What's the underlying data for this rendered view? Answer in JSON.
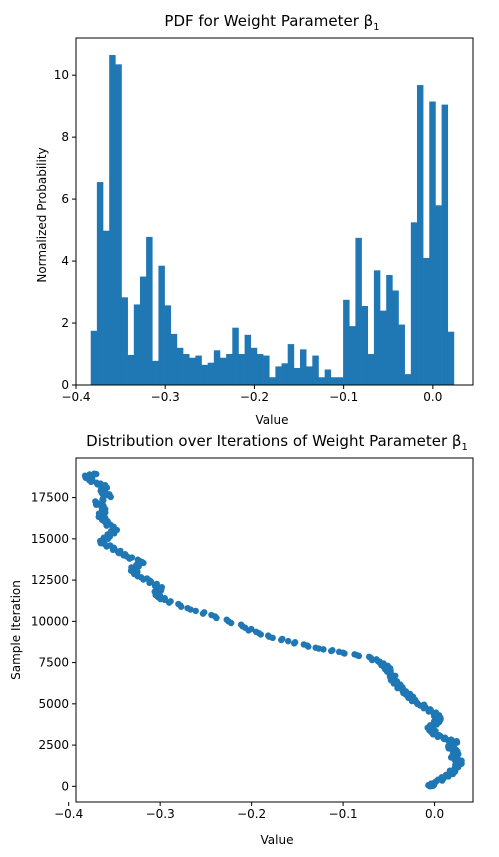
{
  "chart_data": [
    {
      "type": "bar",
      "title": "PDF for Weight Parameter β",
      "title_subscript": "1",
      "xlabel": "Value",
      "ylabel": "Normalized Probability",
      "xlim": [
        -0.4,
        0.045
      ],
      "ylim": [
        0,
        11.2
      ],
      "xticks": [
        -0.4,
        -0.3,
        -0.2,
        -0.1,
        0.0
      ],
      "xtick_labels": [
        "−0.4",
        "−0.3",
        "−0.2",
        "−0.1",
        "0.0"
      ],
      "yticks": [
        0,
        2,
        4,
        6,
        8,
        10
      ],
      "ytick_labels": [
        "0",
        "2",
        "4",
        "6",
        "8",
        "10"
      ],
      "bin_start": -0.3835,
      "bin_width": 0.0069,
      "values": [
        1.75,
        6.55,
        4.98,
        10.65,
        10.35,
        2.83,
        0.97,
        2.6,
        3.5,
        4.78,
        0.78,
        3.85,
        2.57,
        1.65,
        1.2,
        1.0,
        0.88,
        0.95,
        0.65,
        0.72,
        1.12,
        0.88,
        1.0,
        1.85,
        1.0,
        1.62,
        1.2,
        1.0,
        0.95,
        0.25,
        0.6,
        0.7,
        1.32,
        0.55,
        1.15,
        0.6,
        0.95,
        0.25,
        0.5,
        0.25,
        0.25,
        2.75,
        1.9,
        4.75,
        2.55,
        1.0,
        3.7,
        2.4,
        3.55,
        3.05,
        1.95,
        0.35,
        5.25,
        9.68,
        4.1,
        9.15,
        5.8,
        9.05,
        1.72
      ],
      "color": "#1f77b4",
      "grid": false
    },
    {
      "type": "scatter",
      "title": "Distribution over Iterations of Weight Parameter β",
      "title_subscript": "1",
      "xlabel": "Value",
      "ylabel": "Sample Iteration",
      "xlim": [
        -0.392,
        0.042
      ],
      "ylim": [
        -950,
        19900
      ],
      "xticks": [
        -0.4,
        -0.3,
        -0.2,
        -0.1,
        0.0
      ],
      "xtick_labels": [
        "−0.4",
        "−0.3",
        "−0.2",
        "−0.1",
        "0.0"
      ],
      "yticks": [
        0,
        2500,
        5000,
        7500,
        10000,
        12500,
        15000,
        17500
      ],
      "ytick_labels": [
        "0",
        "2500",
        "5000",
        "7500",
        "10000",
        "12500",
        "15000",
        "17500"
      ],
      "points": [
        [
          -0.005,
          0
        ],
        [
          0.0,
          200
        ],
        [
          0.01,
          500
        ],
        [
          0.018,
          800
        ],
        [
          0.022,
          1100
        ],
        [
          0.028,
          1500
        ],
        [
          0.02,
          1800
        ],
        [
          0.025,
          2100
        ],
        [
          0.015,
          2400
        ],
        [
          0.024,
          2700
        ],
        [
          0.01,
          2900
        ],
        [
          0.0,
          3200
        ],
        [
          -0.005,
          3500
        ],
        [
          0.0,
          3800
        ],
        [
          0.005,
          4100
        ],
        [
          0.0,
          4400
        ],
        [
          -0.01,
          4800
        ],
        [
          -0.02,
          5100
        ],
        [
          -0.028,
          5500
        ],
        [
          -0.035,
          5800
        ],
        [
          -0.04,
          6100
        ],
        [
          -0.045,
          6500
        ],
        [
          -0.048,
          6900
        ],
        [
          -0.052,
          7200
        ],
        [
          -0.06,
          7500
        ],
        [
          -0.07,
          7800
        ],
        [
          -0.1,
          8100
        ],
        [
          -0.13,
          8400
        ],
        [
          -0.16,
          8800
        ],
        [
          -0.19,
          9200
        ],
        [
          -0.21,
          9700
        ],
        [
          -0.24,
          10300
        ],
        [
          -0.27,
          10800
        ],
        [
          -0.295,
          11300
        ],
        [
          -0.305,
          11600
        ],
        [
          -0.3,
          12000
        ],
        [
          -0.31,
          12400
        ],
        [
          -0.325,
          12800
        ],
        [
          -0.33,
          13200
        ],
        [
          -0.32,
          13600
        ],
        [
          -0.34,
          14000
        ],
        [
          -0.35,
          14400
        ],
        [
          -0.365,
          14800
        ],
        [
          -0.355,
          15200
        ],
        [
          -0.35,
          15600
        ],
        [
          -0.36,
          16000
        ],
        [
          -0.365,
          16400
        ],
        [
          -0.36,
          16800
        ],
        [
          -0.37,
          17200
        ],
        [
          -0.355,
          17600
        ],
        [
          -0.365,
          17900
        ],
        [
          -0.36,
          18200
        ],
        [
          -0.375,
          18500
        ],
        [
          -0.38,
          18800
        ],
        [
          -0.372,
          18950
        ]
      ],
      "color": "#1f77b4",
      "grid": false
    }
  ]
}
